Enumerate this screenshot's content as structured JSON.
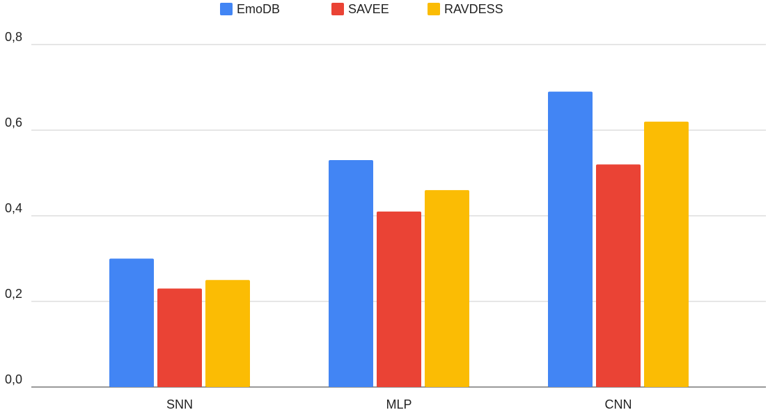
{
  "chart_data": {
    "type": "bar",
    "categories": [
      "SNN",
      "MLP",
      "CNN"
    ],
    "series": [
      {
        "name": "EmoDB",
        "color": "#4285f4",
        "values": [
          0.3,
          0.53,
          0.69
        ]
      },
      {
        "name": "SAVEE",
        "color": "#ea4335",
        "values": [
          0.23,
          0.41,
          0.52
        ]
      },
      {
        "name": "RAVDESS",
        "color": "#fbbc04",
        "values": [
          0.25,
          0.46,
          0.62
        ]
      }
    ],
    "ylim": [
      0,
      0.8
    ],
    "yticks": [
      {
        "value": 0,
        "label": "0,0"
      },
      {
        "value": 0.2,
        "label": "0,2"
      },
      {
        "value": 0.4,
        "label": "0,4"
      },
      {
        "value": 0.6,
        "label": "0,6"
      },
      {
        "value": 0.8,
        "label": "0,8"
      }
    ],
    "grid": true,
    "legend": "top"
  }
}
